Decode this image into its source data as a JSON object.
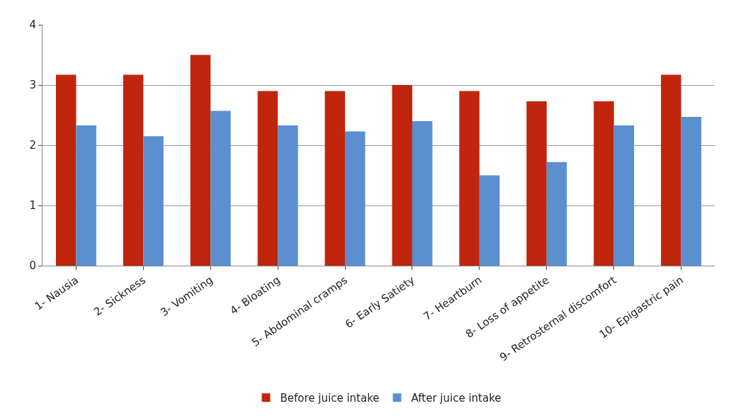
{
  "chart_data": {
    "type": "bar",
    "categories": [
      "1- Nausia",
      "2- Sickness",
      "3- Vomiting",
      "4- Bloating",
      "5- Abdominal cramps",
      "6- Early Satiety",
      "7- Heartburn",
      "8- Loss of appetite",
      "9- Retrosternal discomfort",
      "10- Epigastric pain"
    ],
    "series": [
      {
        "name": "Before juice intake",
        "color": "#c0250e",
        "values": [
          3.17,
          3.17,
          3.5,
          2.9,
          2.9,
          3.0,
          2.9,
          2.73,
          2.73,
          3.17
        ]
      },
      {
        "name": "After juice intake",
        "color": "#5b8fd0",
        "values": [
          2.33,
          2.15,
          2.57,
          2.33,
          2.23,
          2.4,
          1.5,
          1.72,
          2.33,
          2.47
        ]
      }
    ],
    "ylim": [
      0,
      4
    ],
    "yticks": [
      0,
      1,
      2,
      3,
      4
    ],
    "grid": "y",
    "legend": "bottom"
  }
}
